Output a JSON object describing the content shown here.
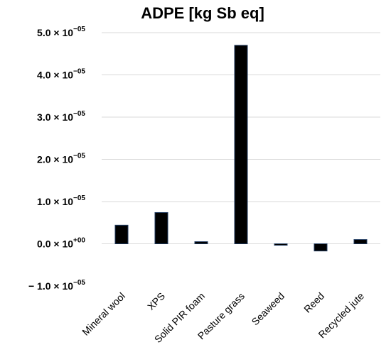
{
  "chart_data": {
    "type": "bar",
    "title": "ADPE [kg Sb eq]",
    "xlabel": "",
    "ylabel": "",
    "categories": [
      "Mineral wool",
      "XPS",
      "Solid PIR foam",
      "Pasture grass",
      "Seaweed",
      "Reed",
      "Recycled jute"
    ],
    "values": [
      4.4e-06,
      7.4e-06,
      5e-07,
      4.7e-05,
      -2e-07,
      -1.7e-06,
      1e-06
    ],
    "ylim": [
      -1e-05,
      5e-05
    ],
    "yticks": [
      {
        "value": 5e-05,
        "mantissa": "5.0",
        "times": "× 10",
        "exponent": "−05"
      },
      {
        "value": 4e-05,
        "mantissa": "4.0",
        "times": "× 10",
        "exponent": "−05"
      },
      {
        "value": 3e-05,
        "mantissa": "3.0",
        "times": "× 10",
        "exponent": "−05"
      },
      {
        "value": 2e-05,
        "mantissa": "2.0",
        "times": "× 10",
        "exponent": "−05"
      },
      {
        "value": 1e-05,
        "mantissa": "1.0",
        "times": "× 10",
        "exponent": "−05"
      },
      {
        "value": 0,
        "mantissa": "0.0",
        "times": "× 10",
        "exponent": "+00"
      },
      {
        "value": -1e-05,
        "mantissa": "− 1.0",
        "times": "× 10",
        "exponent": "−05"
      }
    ],
    "grid": true,
    "legend": "none",
    "colors": {
      "bar_fill": "#000000",
      "bar_edge": "#1f3a5f",
      "grid": "#d9d9d9",
      "text": "#000000"
    }
  }
}
